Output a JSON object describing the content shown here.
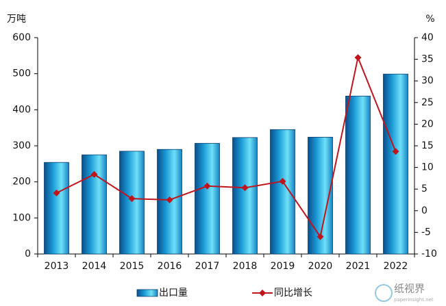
{
  "chart_data": {
    "type": "bar-line",
    "ylabel": "万吨",
    "y2label": "%",
    "categories": [
      "2013",
      "2014",
      "2015",
      "2016",
      "2017",
      "2018",
      "2019",
      "2020",
      "2021",
      "2022"
    ],
    "series": [
      {
        "name": "出口量",
        "type": "bar",
        "color": "#1a9ad6",
        "values": [
          254,
          275,
          285,
          290,
          307,
          323,
          345,
          324,
          438,
          499
        ]
      },
      {
        "name": "同比增长",
        "type": "line",
        "axis": "y2",
        "color": "#c0141c",
        "values": [
          4.1,
          8.4,
          2.8,
          2.5,
          5.7,
          5.3,
          6.8,
          -6.0,
          35.4,
          13.7
        ]
      }
    ],
    "ylim": [
      0,
      600
    ],
    "yticks": [
      0,
      100,
      200,
      300,
      400,
      500,
      600
    ],
    "y2lim": [
      -10,
      40
    ],
    "y2ticks": [
      -10,
      -5,
      0,
      5,
      10,
      15,
      20,
      25,
      30,
      35,
      40
    ],
    "legend": "bottom",
    "watermark": {
      "text": "纸视界",
      "url": "paperinsight.net"
    }
  }
}
